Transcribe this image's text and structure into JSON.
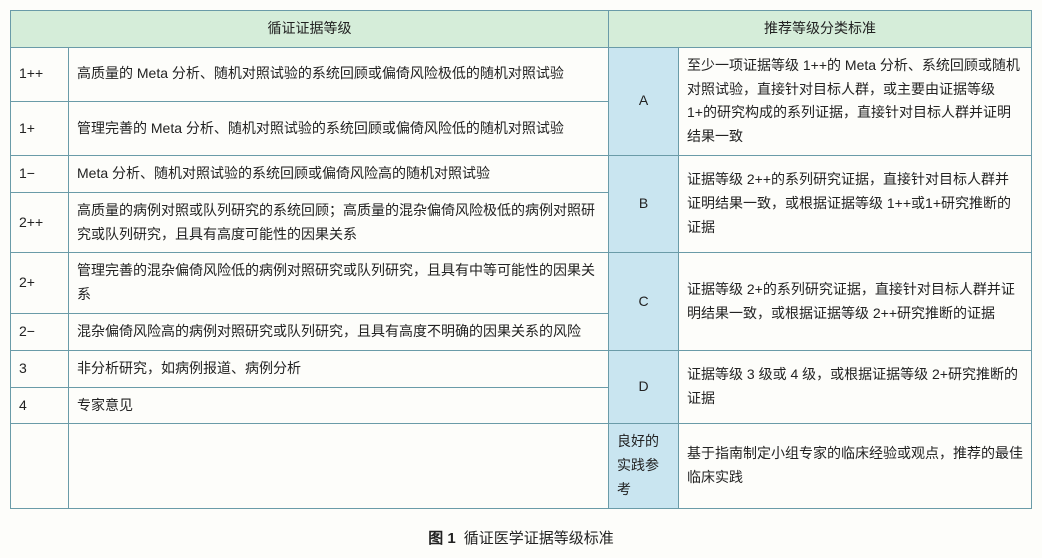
{
  "header": {
    "left": "循证证据等级",
    "right": "推荐等级分类标准"
  },
  "colors": {
    "border": "#6a9ba8",
    "header_bg": "#d5edd9",
    "grade_bg": "#c9e5f0",
    "page_bg": "#fdfdfa",
    "text": "#222222"
  },
  "left_rows": [
    {
      "level": "1++",
      "desc": "高质量的 Meta 分析、随机对照试验的系统回顾或偏倚风险极低的随机对照试验"
    },
    {
      "level": "1+",
      "desc": "管理完善的 Meta 分析、随机对照试验的系统回顾或偏倚风险低的随机对照试验"
    },
    {
      "level": "1−",
      "desc": "Meta 分析、随机对照试验的系统回顾或偏倚风险高的随机对照试验"
    },
    {
      "level": "2++",
      "desc": "高质量的病例对照或队列研究的系统回顾；高质量的混杂偏倚风险极低的病例对照研究或队列研究，且具有高度可能性的因果关系"
    },
    {
      "level": "2+",
      "desc": "管理完善的混杂偏倚风险低的病例对照研究或队列研究，且具有中等可能性的因果关系"
    },
    {
      "level": "2−",
      "desc": "混杂偏倚风险高的病例对照研究或队列研究，且具有高度不明确的因果关系的风险"
    },
    {
      "level": "3",
      "desc": "非分析研究，如病例报道、病例分析"
    },
    {
      "level": "4",
      "desc": "专家意见"
    }
  ],
  "right_rows": [
    {
      "grade": "A",
      "desc": "至少一项证据等级 1++的 Meta 分析、系统回顾或随机对照试验，直接针对目标人群，或主要由证据等级 1+的研究构成的系列证据，直接针对目标人群并证明结果一致"
    },
    {
      "grade": "B",
      "desc": "证据等级 2++的系列研究证据，直接针对目标人群并证明结果一致，或根据证据等级 1++或1+研究推断的证据"
    },
    {
      "grade": "C",
      "desc": "证据等级 2+的系列研究证据，直接针对目标人群并证明结果一致，或根据证据等级 2++研究推断的证据"
    },
    {
      "grade": "D",
      "desc": "证据等级 3 级或 4 级，或根据证据等级 2+研究推断的证据"
    },
    {
      "grade": "良好的实践参考",
      "desc": "基于指南制定小组专家的临床经验或观点，推荐的最佳临床实践"
    }
  ],
  "caption": {
    "label": "图 1",
    "title": "循证医学证据等级标准"
  }
}
